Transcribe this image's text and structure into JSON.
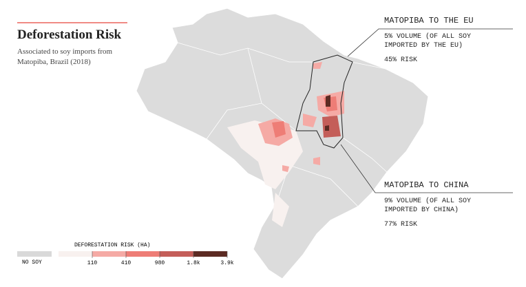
{
  "header": {
    "title": "Deforestation Risk",
    "subtitle": "Associated to soy imports from Matopiba, Brazil (2018)"
  },
  "annotations": [
    {
      "heading": "MATOPIBA TO THE EU",
      "volume": "5% VOLUME (OF ALL SOY IMPORTED BY THE EU)",
      "risk": "45% RISK"
    },
    {
      "heading": "MATOPIBA TO CHINA",
      "volume": "9% VOLUME (OF ALL SOY IMPORTED BY CHINA)",
      "risk": "77% RISK"
    }
  ],
  "legend": {
    "title": "DEFORESTATION RISK (HA)",
    "no_data": "NO SOY",
    "no_data_color": "#d9d9d9",
    "ticks": [
      "110",
      "410",
      "980",
      "1.8k",
      "3.9k"
    ],
    "colors": [
      "#f8f1ef",
      "#f5aaa5",
      "#ee7d76",
      "#c45e59",
      "#5c2b23"
    ]
  }
}
